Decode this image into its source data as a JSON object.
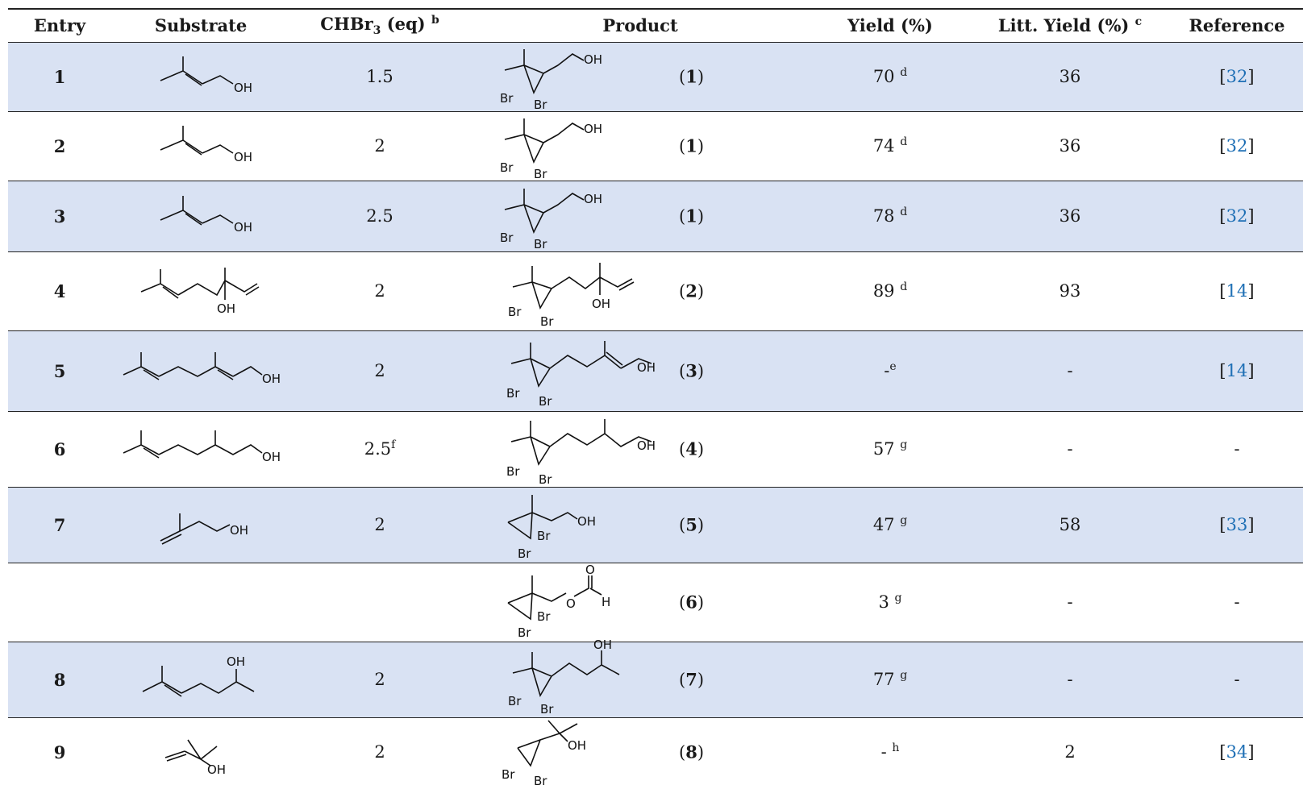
{
  "headers": {
    "entry": "Entry",
    "substrate": "Substrate",
    "chbr3_prefix": "CHBr",
    "chbr3_sub": "3",
    "chbr3_suffix": " (eq) ",
    "chbr3_sup": "b",
    "product": "Product",
    "yield": "Yield (%)",
    "litt_yield": "Litt. Yield (%) ",
    "litt_yield_sup": "c",
    "reference": "Reference"
  },
  "labels": {
    "oh": "OH",
    "br": "Br",
    "o": "O",
    "h": "H"
  },
  "rows": [
    {
      "entry": "1",
      "eq": "1.5",
      "eq_sup": "",
      "product_num": "1",
      "yield": "70 ",
      "yield_sup": "d",
      "litt": "36",
      "ref": "32"
    },
    {
      "entry": "2",
      "eq": "2",
      "eq_sup": "",
      "product_num": "1",
      "yield": "74 ",
      "yield_sup": "d",
      "litt": "36",
      "ref": "32"
    },
    {
      "entry": "3",
      "eq": "2.5",
      "eq_sup": "",
      "product_num": "1",
      "yield": "78 ",
      "yield_sup": "d",
      "litt": "36",
      "ref": "32"
    },
    {
      "entry": "4",
      "eq": "2",
      "eq_sup": "",
      "product_num": "2",
      "yield": "89 ",
      "yield_sup": "d",
      "litt": "93",
      "ref": "14"
    },
    {
      "entry": "5",
      "eq": "2",
      "eq_sup": "",
      "product_num": "3",
      "yield": "-",
      "yield_sup": "e",
      "litt": "-",
      "ref": "14"
    },
    {
      "entry": "6",
      "eq": "2.5",
      "eq_sup": "f",
      "product_num": "4",
      "yield": "57 ",
      "yield_sup": "g",
      "litt": "-",
      "ref": "-"
    },
    {
      "entry": "7",
      "eq": "2",
      "eq_sup": "",
      "product_num": "5",
      "yield": "47 ",
      "yield_sup": "g",
      "litt": "58",
      "ref": "33"
    },
    {
      "entry": "",
      "eq": "",
      "eq_sup": "",
      "product_num": "6",
      "yield": "3 ",
      "yield_sup": "g",
      "litt": "-",
      "ref": "-"
    },
    {
      "entry": "8",
      "eq": "2",
      "eq_sup": "",
      "product_num": "7",
      "yield": "77 ",
      "yield_sup": "g",
      "litt": "-",
      "ref": "-"
    },
    {
      "entry": "9",
      "eq": "2",
      "eq_sup": "",
      "product_num": "8",
      "yield": "- ",
      "yield_sup": "h",
      "litt": "2",
      "ref": "34"
    }
  ],
  "colors": {
    "shade": "#d9e2f3",
    "link": "#1e6fb5"
  }
}
